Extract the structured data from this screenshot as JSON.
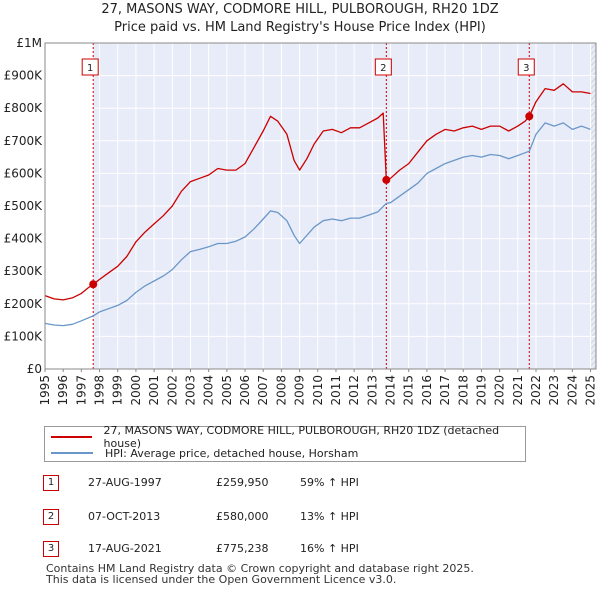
{
  "titles": {
    "line1": "27, MASONS WAY, CODMORE HILL, PULBOROUGH, RH20 1DZ",
    "line2": "Price paid vs. HM Land Registry's House Price Index (HPI)"
  },
  "chart_data": {
    "type": "line",
    "title": "27, MASONS WAY, CODMORE HILL, PULBOROUGH, RH20 1DZ — Price paid vs. HM Land Registry's House Price Index (HPI)",
    "xlim": [
      1995,
      2025.3
    ],
    "ylim": [
      0,
      1000000
    ],
    "x_ticks": [
      1995,
      1996,
      1997,
      1998,
      1999,
      2000,
      2001,
      2002,
      2003,
      2004,
      2005,
      2006,
      2007,
      2008,
      2009,
      2010,
      2011,
      2012,
      2013,
      2014,
      2015,
      2016,
      2017,
      2018,
      2019,
      2020,
      2021,
      2022,
      2023,
      2024,
      2025
    ],
    "y_ticks": [
      {
        "value": 0,
        "label": "£0"
      },
      {
        "value": 100000,
        "label": "£100K"
      },
      {
        "value": 200000,
        "label": "£200K"
      },
      {
        "value": 300000,
        "label": "£300K"
      },
      {
        "value": 400000,
        "label": "£400K"
      },
      {
        "value": 500000,
        "label": "£500K"
      },
      {
        "value": 600000,
        "label": "£600K"
      },
      {
        "value": 700000,
        "label": "£700K"
      },
      {
        "value": 800000,
        "label": "£800K"
      },
      {
        "value": 900000,
        "label": "£900K"
      },
      {
        "value": 1000000,
        "label": "£1M"
      }
    ],
    "series": [
      {
        "name": "27, MASONS WAY, CODMORE HILL, PULBOROUGH, RH20 1DZ (detached house)",
        "color": "#cc0000",
        "points": [
          [
            1995,
            225000
          ],
          [
            1995.5,
            215000
          ],
          [
            1996,
            212000
          ],
          [
            1996.5,
            218000
          ],
          [
            1997,
            232000
          ],
          [
            1997.4,
            250000
          ],
          [
            1997.65,
            259950
          ],
          [
            1998,
            275000
          ],
          [
            1998.5,
            295000
          ],
          [
            1999,
            315000
          ],
          [
            1999.5,
            345000
          ],
          [
            2000,
            390000
          ],
          [
            2000.5,
            420000
          ],
          [
            2001,
            445000
          ],
          [
            2001.5,
            470000
          ],
          [
            2002,
            500000
          ],
          [
            2002.5,
            545000
          ],
          [
            2003,
            575000
          ],
          [
            2003.5,
            585000
          ],
          [
            2004,
            595000
          ],
          [
            2004.5,
            615000
          ],
          [
            2005,
            610000
          ],
          [
            2005.5,
            610000
          ],
          [
            2006,
            630000
          ],
          [
            2006.5,
            680000
          ],
          [
            2007,
            730000
          ],
          [
            2007.4,
            775000
          ],
          [
            2007.8,
            760000
          ],
          [
            2008.3,
            720000
          ],
          [
            2008.7,
            640000
          ],
          [
            2009.0,
            610000
          ],
          [
            2009.4,
            645000
          ],
          [
            2009.8,
            690000
          ],
          [
            2010.3,
            730000
          ],
          [
            2010.8,
            735000
          ],
          [
            2011.3,
            725000
          ],
          [
            2011.8,
            740000
          ],
          [
            2012.3,
            740000
          ],
          [
            2012.8,
            755000
          ],
          [
            2013.3,
            770000
          ],
          [
            2013.6,
            785000
          ],
          [
            2013.77,
            580000
          ],
          [
            2014,
            585000
          ],
          [
            2014.5,
            610000
          ],
          [
            2015,
            630000
          ],
          [
            2015.5,
            665000
          ],
          [
            2016,
            700000
          ],
          [
            2016.5,
            720000
          ],
          [
            2017,
            735000
          ],
          [
            2017.5,
            730000
          ],
          [
            2018,
            740000
          ],
          [
            2018.5,
            745000
          ],
          [
            2019,
            735000
          ],
          [
            2019.5,
            745000
          ],
          [
            2020,
            745000
          ],
          [
            2020.5,
            730000
          ],
          [
            2021,
            745000
          ],
          [
            2021.4,
            760000
          ],
          [
            2021.63,
            775238
          ],
          [
            2022,
            820000
          ],
          [
            2022.5,
            860000
          ],
          [
            2023,
            855000
          ],
          [
            2023.5,
            875000
          ],
          [
            2024,
            850000
          ],
          [
            2024.5,
            850000
          ],
          [
            2025,
            845000
          ]
        ]
      },
      {
        "name": "HPI: Average price, detached house, Horsham",
        "color": "#6b97c8",
        "points": [
          [
            1995,
            140000
          ],
          [
            1995.5,
            135000
          ],
          [
            1996,
            133000
          ],
          [
            1996.5,
            137000
          ],
          [
            1997,
            148000
          ],
          [
            1997.65,
            163000
          ],
          [
            1998,
            175000
          ],
          [
            1998.5,
            185000
          ],
          [
            1999,
            195000
          ],
          [
            1999.5,
            210000
          ],
          [
            2000,
            235000
          ],
          [
            2000.5,
            255000
          ],
          [
            2001,
            270000
          ],
          [
            2001.5,
            285000
          ],
          [
            2002,
            305000
          ],
          [
            2002.5,
            335000
          ],
          [
            2003,
            360000
          ],
          [
            2003.5,
            367000
          ],
          [
            2004,
            375000
          ],
          [
            2004.5,
            385000
          ],
          [
            2005,
            385000
          ],
          [
            2005.5,
            392000
          ],
          [
            2006,
            405000
          ],
          [
            2006.5,
            430000
          ],
          [
            2007,
            460000
          ],
          [
            2007.4,
            485000
          ],
          [
            2007.8,
            480000
          ],
          [
            2008.3,
            455000
          ],
          [
            2008.7,
            410000
          ],
          [
            2009.0,
            385000
          ],
          [
            2009.4,
            410000
          ],
          [
            2009.8,
            435000
          ],
          [
            2010.3,
            455000
          ],
          [
            2010.8,
            460000
          ],
          [
            2011.3,
            455000
          ],
          [
            2011.8,
            463000
          ],
          [
            2012.3,
            463000
          ],
          [
            2012.8,
            472000
          ],
          [
            2013.3,
            482000
          ],
          [
            2013.77,
            508000
          ],
          [
            2014,
            510000
          ],
          [
            2014.5,
            530000
          ],
          [
            2015,
            550000
          ],
          [
            2015.5,
            570000
          ],
          [
            2016,
            600000
          ],
          [
            2016.5,
            615000
          ],
          [
            2017,
            630000
          ],
          [
            2017.5,
            640000
          ],
          [
            2018,
            650000
          ],
          [
            2018.5,
            655000
          ],
          [
            2019,
            650000
          ],
          [
            2019.5,
            658000
          ],
          [
            2020,
            655000
          ],
          [
            2020.5,
            645000
          ],
          [
            2021,
            655000
          ],
          [
            2021.63,
            668000
          ],
          [
            2022,
            720000
          ],
          [
            2022.5,
            755000
          ],
          [
            2023,
            745000
          ],
          [
            2023.5,
            755000
          ],
          [
            2024,
            735000
          ],
          [
            2024.5,
            745000
          ],
          [
            2025,
            735000
          ]
        ]
      }
    ],
    "sales": [
      {
        "label": "1",
        "x": 1997.65,
        "y": 259950
      },
      {
        "label": "2",
        "x": 2013.77,
        "y": 580000
      },
      {
        "label": "3",
        "x": 2021.63,
        "y": 775238
      }
    ]
  },
  "legend": {
    "property": {
      "label": "27, MASONS WAY, CODMORE HILL, PULBOROUGH, RH20 1DZ (detached house)",
      "color": "#cc0000"
    },
    "hpi": {
      "label": "HPI: Average price, detached house, Horsham",
      "color": "#6b97c8"
    }
  },
  "transactions": [
    {
      "num": "1",
      "date": "27-AUG-1997",
      "price": "£259,950",
      "hpi": "59% ↑ HPI"
    },
    {
      "num": "2",
      "date": "07-OCT-2013",
      "price": "£580,000",
      "hpi": "13% ↑ HPI"
    },
    {
      "num": "3",
      "date": "17-AUG-2021",
      "price": "£775,238",
      "hpi": "16% ↑ HPI"
    }
  ],
  "footer": {
    "line1": "Contains HM Land Registry data © Crown copyright and database right 2025.",
    "line2": "This data is licensed under the Open Government Licence v3.0."
  }
}
